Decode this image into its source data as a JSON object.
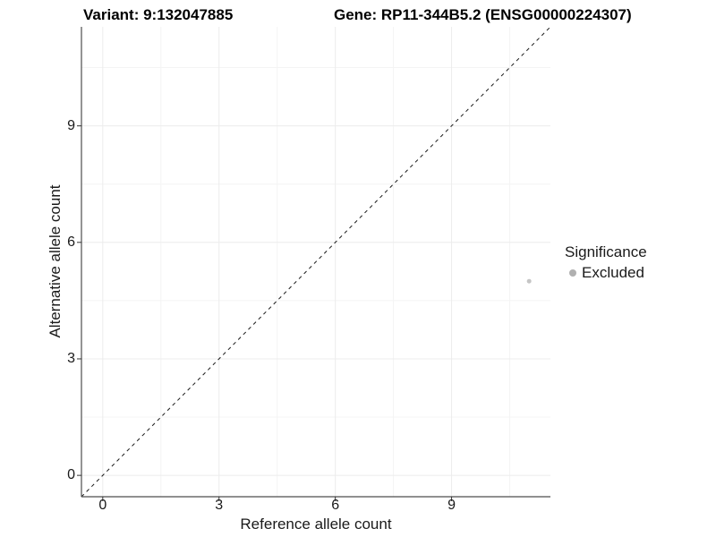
{
  "titles": {
    "variant": "Variant: 9:132047885",
    "gene": "Gene: RP11-344B5.2 (ENSG00000224307)"
  },
  "chart_data": {
    "type": "scatter",
    "xlabel": "Reference allele count",
    "ylabel": "Alternative allele count",
    "xlim": [
      -0.55,
      11.55
    ],
    "ylim": [
      -0.55,
      11.55
    ],
    "x_ticks": [
      0,
      3,
      6,
      9
    ],
    "y_ticks": [
      0,
      3,
      6,
      9
    ],
    "x_minor_ticks": [
      1.5,
      4.5,
      7.5,
      10.5
    ],
    "y_minor_ticks": [
      1.5,
      4.5,
      7.5,
      10.5
    ],
    "grid": true,
    "series": [
      {
        "name": "Excluded",
        "points": [
          {
            "x": 11,
            "y": 5
          }
        ]
      }
    ],
    "identity_line": {
      "style": "dashed",
      "from": [
        -0.55,
        -0.55
      ],
      "to": [
        11.55,
        11.55
      ]
    },
    "legend": {
      "title": "Significance",
      "position": "right",
      "entries": [
        {
          "label": "Excluded",
          "color": "#b0b0b0"
        }
      ]
    },
    "colors": {
      "point": "#c5c5c5",
      "grid_major": "#ececec",
      "grid_minor": "#f4f4f4",
      "axis_line": "#4d4d4d",
      "tick_mark": "#333333",
      "identity_line": "#1a1a1a",
      "background": "#ffffff"
    }
  }
}
